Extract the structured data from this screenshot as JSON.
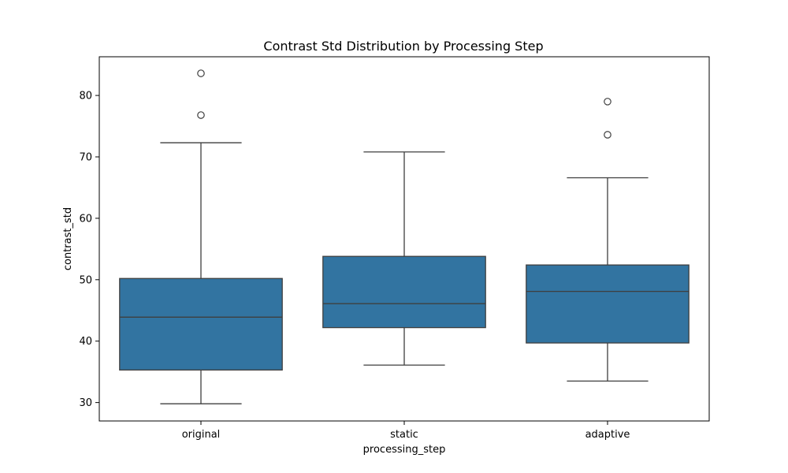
{
  "chart_data": {
    "type": "box",
    "title": "Contrast Std Distribution by Processing Step",
    "xlabel": "processing_step",
    "ylabel": "contrast_std",
    "categories": [
      "original",
      "static",
      "adaptive"
    ],
    "ylim": [
      27,
      86.3
    ],
    "yticks": [
      30,
      40,
      50,
      60,
      70,
      80
    ],
    "grid": false,
    "box_color": "#3274a1",
    "line_color": "#3f3f3f",
    "boxes": [
      {
        "category": "original",
        "whisker_low": 29.8,
        "q1": 35.3,
        "median": 43.9,
        "q3": 50.2,
        "whisker_high": 72.3,
        "outliers": [
          76.8,
          83.6
        ]
      },
      {
        "category": "static",
        "whisker_low": 36.1,
        "q1": 42.2,
        "median": 46.1,
        "q3": 53.8,
        "whisker_high": 70.8,
        "outliers": []
      },
      {
        "category": "adaptive",
        "whisker_low": 33.5,
        "q1": 39.7,
        "median": 48.1,
        "q3": 52.4,
        "whisker_high": 66.6,
        "outliers": [
          73.6,
          79.0
        ]
      }
    ]
  }
}
